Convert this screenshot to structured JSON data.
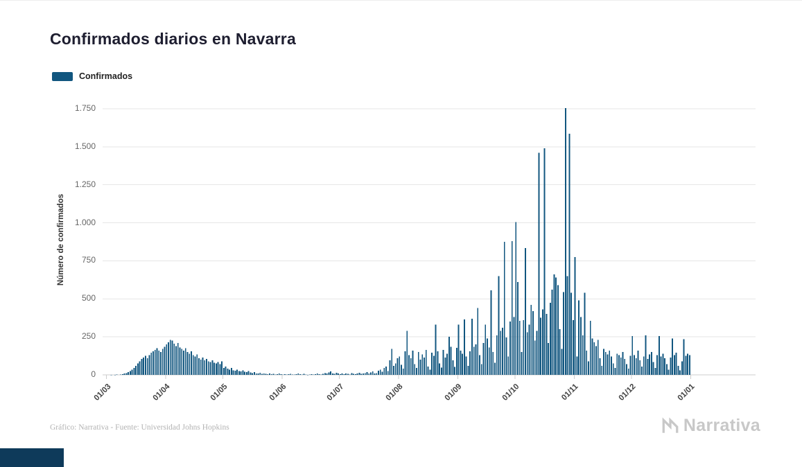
{
  "header": {
    "title": "Confirmados diarios en Navarra"
  },
  "legend": {
    "items": [
      {
        "label": "Confirmados",
        "color": "#11567f"
      }
    ]
  },
  "footer": {
    "credit": "Gráfico: Narrativa - Fuente: Universidad Johns Hopkins",
    "brand": "Narrativa"
  },
  "colors": {
    "bar": "#11567f",
    "grid": "#e6e6e6",
    "axis_line": "#cccccc",
    "corner_block": "#0e3a5a",
    "title_text": "#1e1e30",
    "tick_text": "#666666",
    "brand_text": "#c8c8c8"
  },
  "chart_data": {
    "type": "bar",
    "title": "Confirmados diarios en Navarra",
    "xlabel": "",
    "ylabel": "Número de confirmados",
    "legend": [
      "Confirmados"
    ],
    "legend_position": "top-left",
    "grid": true,
    "ylim": [
      0,
      1750
    ],
    "y_ticks": [
      "0",
      "250",
      "500",
      "750",
      "1.000",
      "1.250",
      "1.500",
      "1.750"
    ],
    "y_tick_values": [
      0,
      250,
      500,
      750,
      1000,
      1250,
      1500,
      1750
    ],
    "x_tick_labels": [
      "01/03",
      "01/04",
      "01/05",
      "01/06",
      "01/07",
      "01/08",
      "01/09",
      "01/10",
      "01/11",
      "01/12",
      "01/01"
    ],
    "x_tick_indices": [
      2,
      33,
      63,
      94,
      124,
      155,
      186,
      216,
      247,
      277,
      308
    ],
    "dates_start": "2020-02-28",
    "frequency": "daily",
    "series": [
      {
        "name": "Confirmados",
        "values": [
          0,
          0,
          0,
          0,
          1,
          0,
          1,
          2,
          0,
          3,
          5,
          8,
          12,
          18,
          25,
          35,
          45,
          60,
          75,
          90,
          105,
          115,
          125,
          110,
          130,
          145,
          155,
          165,
          175,
          160,
          150,
          170,
          185,
          200,
          215,
          230,
          225,
          205,
          190,
          210,
          180,
          170,
          160,
          175,
          150,
          140,
          155,
          130,
          120,
          135,
          110,
          100,
          115,
          95,
          105,
          90,
          85,
          95,
          80,
          75,
          85,
          70,
          90,
          45,
          55,
          40,
          35,
          45,
          30,
          28,
          35,
          25,
          22,
          30,
          20,
          18,
          25,
          15,
          12,
          18,
          10,
          8,
          14,
          7,
          10,
          6,
          5,
          9,
          4,
          6,
          3,
          5,
          8,
          4,
          3,
          5,
          2,
          4,
          6,
          3,
          2,
          5,
          8,
          4,
          3,
          6,
          2,
          1,
          3,
          5,
          2,
          4,
          10,
          5,
          3,
          6,
          12,
          8,
          15,
          22,
          10,
          6,
          14,
          8,
          5,
          8,
          4,
          10,
          6,
          3,
          12,
          7,
          5,
          9,
          14,
          6,
          8,
          12,
          18,
          10,
          15,
          22,
          8,
          12,
          28,
          35,
          20,
          45,
          55,
          25,
          95,
          170,
          60,
          75,
          110,
          120,
          65,
          40,
          155,
          290,
          130,
          110,
          160,
          70,
          45,
          150,
          100,
          135,
          115,
          165,
          55,
          35,
          145,
          125,
          330,
          155,
          75,
          48,
          165,
          115,
          140,
          250,
          185,
          95,
          52,
          178,
          330,
          160,
          140,
          365,
          120,
          60,
          155,
          370,
          185,
          200,
          440,
          130,
          70,
          210,
          330,
          240,
          180,
          555,
          150,
          80,
          260,
          650,
          290,
          310,
          875,
          245,
          120,
          350,
          880,
          380,
          1005,
          610,
          355,
          150,
          360,
          835,
          280,
          330,
          460,
          420,
          225,
          290,
          1460,
          375,
          430,
          1490,
          400,
          210,
          475,
          560,
          660,
          640,
          590,
          300,
          170,
          545,
          1755,
          650,
          1585,
          540,
          360,
          775,
          120,
          490,
          380,
          260,
          540,
          160,
          90,
          355,
          240,
          215,
          190,
          230,
          110,
          60,
          170,
          150,
          135,
          160,
          120,
          75,
          45,
          140,
          130,
          115,
          150,
          105,
          70,
          40,
          125,
          255,
          130,
          110,
          160,
          95,
          55,
          120,
          260,
          105,
          135,
          150,
          85,
          45,
          130,
          255,
          120,
          140,
          110,
          70,
          35,
          115,
          240,
          130,
          145,
          60,
          30,
          90,
          235,
          125,
          140,
          130
        ]
      }
    ]
  }
}
